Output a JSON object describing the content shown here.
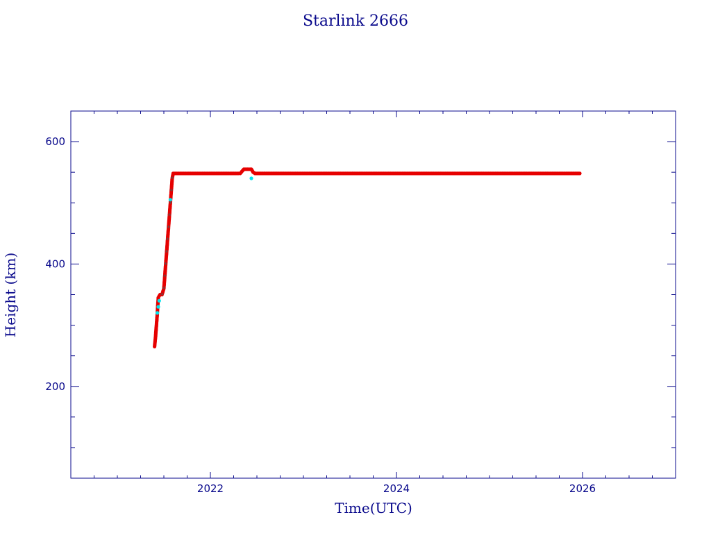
{
  "chart_data": {
    "type": "scatter",
    "title": "Starlink 2666",
    "xlabel": "Time(UTC)",
    "ylabel": "Height (km)",
    "xlim": [
      2020.5,
      2027.0
    ],
    "ylim": [
      50,
      650
    ],
    "x_ticks": [
      2022,
      2024,
      2026
    ],
    "x_tick_labels": [
      "2022",
      "2024",
      "2026"
    ],
    "y_ticks": [
      200,
      400,
      600
    ],
    "y_tick_labels": [
      "200",
      "400",
      "600"
    ],
    "grid": false,
    "colors": {
      "frame": "#0a0a8c",
      "primary_series": "#e60000",
      "secondary_series": "#00e5ee",
      "ascent_marker": "#555555"
    },
    "series": [
      {
        "color": "#e60000",
        "x": [
          2021.4,
          2021.41,
          2021.42,
          2021.43,
          2021.44,
          2021.45,
          2021.46,
          2021.48,
          2021.5,
          2021.51,
          2021.52,
          2021.53,
          2021.54,
          2021.55,
          2021.56,
          2021.57,
          2021.58,
          2021.59,
          2021.6,
          2021.7,
          2021.85,
          2022.0,
          2022.15,
          2022.3,
          2022.32,
          2022.36,
          2022.4,
          2022.44,
          2022.46,
          2022.48,
          2022.6,
          2022.8,
          2023.0,
          2023.2,
          2023.4,
          2023.6,
          2023.8,
          2024.0,
          2024.2,
          2024.4,
          2024.6,
          2024.8,
          2025.0,
          2025.2,
          2025.4,
          2025.6,
          2025.8,
          2025.97
        ],
        "y": [
          265,
          280,
          300,
          320,
          345,
          348,
          350,
          350,
          360,
          380,
          400,
          420,
          440,
          460,
          480,
          500,
          520,
          540,
          548,
          548,
          548,
          548,
          548,
          548,
          548,
          555,
          555,
          555,
          550,
          548,
          548,
          548,
          548,
          548,
          548,
          548,
          548,
          548,
          548,
          548,
          548,
          548,
          548,
          548,
          548,
          548,
          548,
          548
        ]
      },
      {
        "color": "#00e5ee",
        "x": [
          2021.43,
          2021.44,
          2021.45,
          2021.57,
          2022.44
        ],
        "y": [
          320,
          330,
          340,
          505,
          540
        ]
      }
    ]
  }
}
